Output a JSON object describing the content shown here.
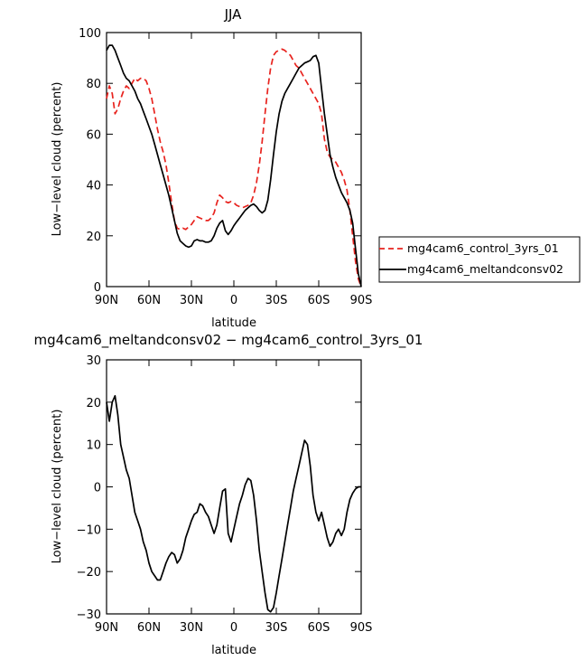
{
  "chart_data": [
    {
      "type": "line",
      "title": "JJA",
      "xlabel": "latitude",
      "ylabel": "Low−level cloud (percent)",
      "xlim": [
        90,
        -90
      ],
      "ylim": [
        0,
        100
      ],
      "xticks": [
        90,
        60,
        30,
        0,
        -30,
        -60,
        -90
      ],
      "xtick_labels": [
        "90N",
        "60N",
        "30N",
        "0",
        "30S",
        "60S",
        "90S"
      ],
      "yticks": [
        0,
        20,
        40,
        60,
        80,
        100
      ],
      "ytick_labels": [
        "0",
        "20",
        "40",
        "60",
        "80",
        "100"
      ],
      "legend_position": "right",
      "series": [
        {
          "name": "mg4cam6_control_3yrs_01",
          "color": "#e8231e",
          "style": "dashed",
          "x": [
            90,
            88,
            86,
            84,
            82,
            80,
            78,
            76,
            74,
            72,
            70,
            68,
            66,
            64,
            62,
            60,
            58,
            56,
            54,
            52,
            50,
            48,
            46,
            44,
            42,
            40,
            38,
            36,
            34,
            32,
            30,
            28,
            26,
            24,
            22,
            20,
            18,
            16,
            14,
            12,
            10,
            8,
            6,
            4,
            2,
            0,
            -2,
            -4,
            -6,
            -8,
            -10,
            -12,
            -14,
            -16,
            -18,
            -20,
            -22,
            -24,
            -26,
            -28,
            -30,
            -32,
            -34,
            -36,
            -38,
            -40,
            -42,
            -44,
            -46,
            -48,
            -50,
            -52,
            -54,
            -56,
            -58,
            -60,
            -62,
            -64,
            -66,
            -68,
            -70,
            -72,
            -74,
            -76,
            -78,
            -80,
            -82,
            -84,
            -86,
            -88,
            -90
          ],
          "y": [
            74,
            79,
            76,
            68,
            70,
            74,
            77,
            79,
            78,
            80,
            82,
            81,
            82,
            82,
            81,
            78,
            74,
            68,
            62,
            57,
            53,
            48,
            41,
            33,
            26,
            23,
            22.5,
            23,
            22.5,
            23.5,
            24.5,
            26,
            27.5,
            27,
            26.5,
            26,
            26,
            27,
            29,
            33,
            36,
            35,
            33.5,
            33,
            33.5,
            33,
            32,
            31.5,
            31,
            31.5,
            32,
            33,
            36,
            41,
            48,
            57,
            68,
            78,
            86,
            91,
            92.5,
            93,
            93.5,
            93,
            92,
            91,
            89,
            87,
            86,
            84,
            82,
            80,
            78,
            76,
            74,
            72,
            68,
            58,
            53,
            51,
            50,
            49,
            47,
            45,
            42,
            38,
            30,
            20,
            10,
            3,
            0
          ]
        },
        {
          "name": "mg4cam6_meltandconsv02",
          "color": "#000000",
          "style": "solid",
          "x": [
            90,
            88,
            86,
            84,
            82,
            80,
            78,
            76,
            74,
            72,
            70,
            68,
            66,
            64,
            62,
            60,
            58,
            56,
            54,
            52,
            50,
            48,
            46,
            44,
            42,
            40,
            38,
            36,
            34,
            32,
            30,
            28,
            26,
            24,
            22,
            20,
            18,
            16,
            14,
            12,
            10,
            8,
            6,
            4,
            2,
            0,
            -2,
            -4,
            -6,
            -8,
            -10,
            -12,
            -14,
            -16,
            -18,
            -20,
            -22,
            -24,
            -26,
            -28,
            -30,
            -32,
            -34,
            -36,
            -38,
            -40,
            -42,
            -44,
            -46,
            -48,
            -50,
            -52,
            -54,
            -56,
            -58,
            -60,
            -62,
            -64,
            -66,
            -68,
            -70,
            -72,
            -74,
            -76,
            -78,
            -80,
            -82,
            -84,
            -86,
            -88,
            -90
          ],
          "y": [
            93,
            95,
            95,
            93,
            90,
            87,
            84,
            82,
            81,
            79,
            77,
            74,
            72,
            69,
            66,
            63,
            60,
            56,
            52,
            48,
            44,
            40,
            36,
            31,
            26,
            21,
            18,
            17,
            16,
            15.5,
            16,
            18,
            18.5,
            18,
            18,
            17.5,
            17.5,
            18,
            20,
            23,
            25,
            26,
            22,
            20.5,
            22,
            24,
            25.5,
            27,
            28.5,
            30,
            31,
            32,
            32.5,
            31.5,
            30,
            29,
            30,
            34,
            42,
            52,
            61,
            68,
            73,
            76,
            78,
            80,
            82,
            84,
            86,
            87,
            88,
            88.5,
            89,
            90.5,
            91,
            88,
            78,
            68,
            60,
            52,
            47,
            43,
            40,
            37,
            35,
            33,
            30,
            25,
            15,
            5,
            0
          ]
        }
      ]
    },
    {
      "type": "line",
      "title": "mg4cam6_meltandconsv02 − mg4cam6_control_3yrs_01",
      "xlabel": "latitude",
      "ylabel": "Low−level cloud (percent)",
      "xlim": [
        90,
        -90
      ],
      "ylim": [
        -30,
        30
      ],
      "xticks": [
        90,
        60,
        30,
        0,
        -30,
        -60,
        -90
      ],
      "xtick_labels": [
        "90N",
        "60N",
        "30N",
        "0",
        "30S",
        "60S",
        "90S"
      ],
      "yticks": [
        -30,
        -20,
        -10,
        0,
        10,
        20,
        30
      ],
      "ytick_labels": [
        "−30",
        "−20",
        "−10",
        "0",
        "10",
        "20",
        "30"
      ],
      "series": [
        {
          "color": "#000000",
          "style": "solid",
          "x": [
            90,
            88,
            86,
            84,
            82,
            80,
            78,
            76,
            74,
            72,
            70,
            68,
            66,
            64,
            62,
            60,
            58,
            56,
            54,
            52,
            50,
            48,
            46,
            44,
            42,
            40,
            38,
            36,
            34,
            32,
            30,
            28,
            26,
            24,
            22,
            20,
            18,
            16,
            14,
            12,
            10,
            8,
            6,
            4,
            2,
            0,
            -2,
            -4,
            -6,
            -8,
            -10,
            -12,
            -14,
            -16,
            -18,
            -20,
            -22,
            -24,
            -26,
            -28,
            -30,
            -32,
            -34,
            -36,
            -38,
            -40,
            -42,
            -44,
            -46,
            -48,
            -50,
            -52,
            -54,
            -56,
            -58,
            -60,
            -62,
            -64,
            -66,
            -68,
            -70,
            -72,
            -74,
            -76,
            -78,
            -80,
            -82,
            -84,
            -86,
            -88,
            -90
          ],
          "y": [
            20,
            15.5,
            20,
            21.5,
            17,
            10,
            7,
            4,
            2,
            -2,
            -6,
            -8,
            -10,
            -13,
            -15,
            -18,
            -20,
            -21,
            -22,
            -22,
            -20,
            -18,
            -16.5,
            -15.5,
            -16,
            -18,
            -17,
            -15,
            -12,
            -10,
            -8,
            -6.5,
            -6,
            -4,
            -4.5,
            -6,
            -7,
            -9,
            -11,
            -9,
            -5,
            -1,
            -0.5,
            -11,
            -13,
            -10,
            -7,
            -4,
            -2,
            0.5,
            2,
            1.5,
            -2,
            -8,
            -15,
            -20,
            -25,
            -29,
            -29.5,
            -28.5,
            -25,
            -21,
            -17,
            -13,
            -9,
            -5,
            -1,
            2,
            5,
            8,
            11,
            10,
            5,
            -2,
            -6,
            -8,
            -6,
            -9,
            -12,
            -14,
            -13,
            -11,
            -10,
            -11.5,
            -10,
            -6,
            -3,
            -1.5,
            -0.5,
            0,
            0
          ]
        }
      ]
    }
  ]
}
